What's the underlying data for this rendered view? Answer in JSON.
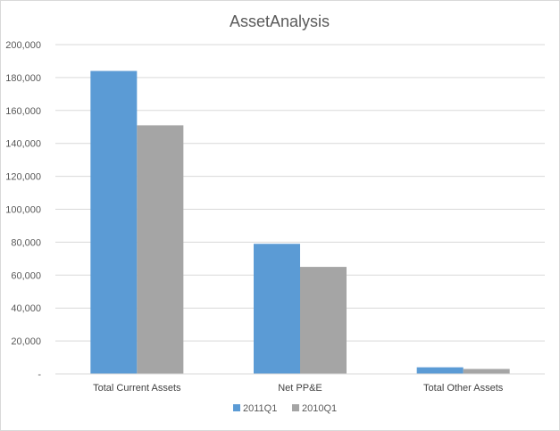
{
  "chart_data": {
    "type": "bar",
    "title": "AssetAnalysis",
    "xlabel": "",
    "ylabel": "",
    "categories": [
      "Total Current Assets",
      "Net PP&E",
      "Total Other Assets"
    ],
    "series": [
      {
        "name": "2011Q1",
        "color": "#5b9bd5",
        "values": [
          184000,
          79000,
          4000
        ]
      },
      {
        "name": "2010Q1",
        "color": "#a5a5a5",
        "values": [
          151000,
          65000,
          3000
        ]
      }
    ],
    "ylim": [
      0,
      200000
    ],
    "yticks": [
      {
        "value": 0,
        "label": "-"
      },
      {
        "value": 20000,
        "label": "20,000"
      },
      {
        "value": 40000,
        "label": "40,000"
      },
      {
        "value": 60000,
        "label": "60,000"
      },
      {
        "value": 80000,
        "label": "80,000"
      },
      {
        "value": 100000,
        "label": "100,000"
      },
      {
        "value": 120000,
        "label": "120,000"
      },
      {
        "value": 140000,
        "label": "140,000"
      },
      {
        "value": 160000,
        "label": "160,000"
      },
      {
        "value": 180000,
        "label": "180,000"
      },
      {
        "value": 200000,
        "label": "200,000"
      }
    ],
    "grid": true,
    "legend": "bottom"
  }
}
